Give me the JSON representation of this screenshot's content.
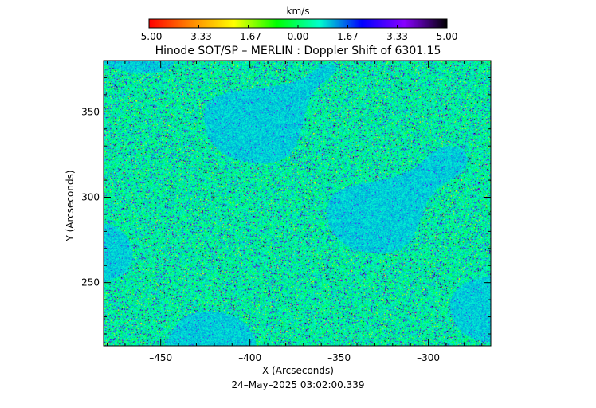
{
  "chart_data": {
    "type": "heatmap",
    "title": "Hinode SOT/SP – MERLIN : Doppler Shift of 6301.15",
    "xlabel": "X (Arcseconds)",
    "ylabel": "Y (Arcseconds)",
    "timestamp": "24–May–2025 03:02:00.339",
    "xlim": [
      -482,
      -265
    ],
    "ylim": [
      213,
      380
    ],
    "x_ticks": [
      -450,
      -400,
      -350,
      -300
    ],
    "x_tick_labels": [
      "–450",
      "–400",
      "–350",
      "–300"
    ],
    "y_ticks": [
      250,
      300,
      350
    ],
    "y_tick_labels": [
      "250",
      "300",
      "350"
    ],
    "colorbar": {
      "label": "km/s",
      "min": -5.0,
      "max": 5.0,
      "ticks": [
        -5.0,
        -3.33,
        -1.67,
        0.0,
        1.67,
        3.33,
        5.0
      ],
      "tick_labels": [
        "–5.00",
        "–3.33",
        "–1.67",
        "0.00",
        "1.67",
        "3.33",
        "5.00"
      ],
      "colors": [
        "#ff0000",
        "#ff8800",
        "#ffff00",
        "#00ff00",
        "#00ffcc",
        "#0000ff",
        "#8800ff",
        "#000000"
      ]
    },
    "field_description_values": {
      "dominant_velocity_kms": 0.5,
      "quiet_region_velocity_kms": 1.0
    }
  }
}
